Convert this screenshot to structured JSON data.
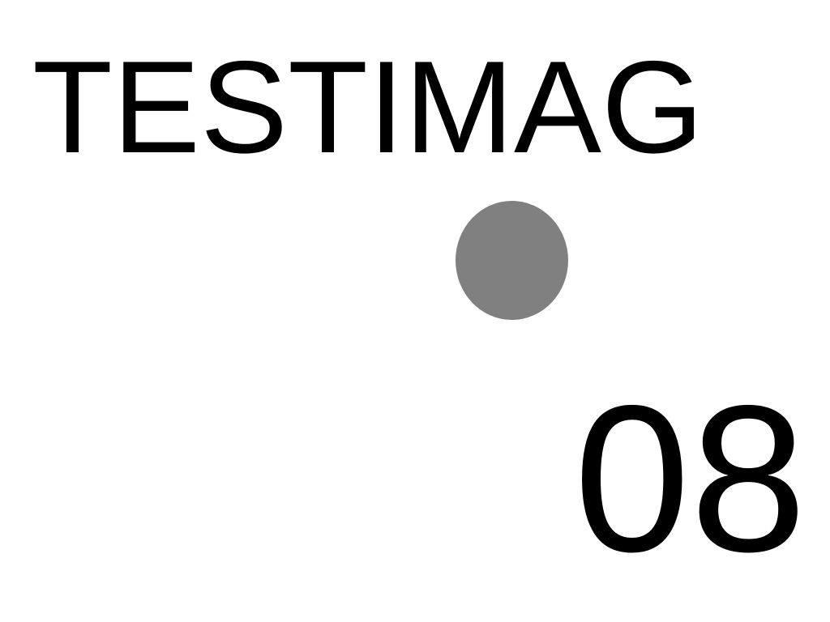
{
  "title": "TESTIMAG",
  "number": "08",
  "dot": {
    "color": "#808080"
  },
  "colors": {
    "background": "#ffffff",
    "text": "#000000"
  }
}
